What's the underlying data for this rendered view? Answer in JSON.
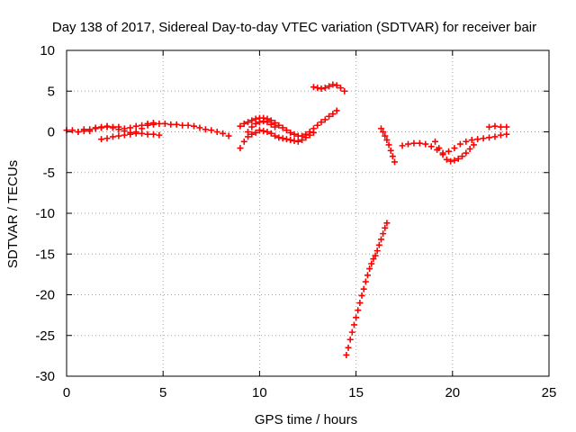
{
  "chart_data": {
    "type": "scatter",
    "title": "Day 138 of 2017, Sidereal Day-to-day VTEC variation (SDTVAR) for receiver bair",
    "xlabel": "GPS time / hours",
    "ylabel": "SDTVAR / TECUs",
    "xlim": [
      0,
      25
    ],
    "ylim": [
      -30,
      10
    ],
    "xticks": [
      0,
      5,
      10,
      15,
      20,
      25
    ],
    "yticks": [
      -30,
      -25,
      -20,
      -15,
      -10,
      -5,
      0,
      5,
      10
    ],
    "grid": true,
    "grid_style": "dotted",
    "marker": "plus",
    "color": "#ff0000",
    "series": [
      {
        "points": [
          [
            0.0,
            0.2
          ],
          [
            0.3,
            0.2
          ],
          [
            0.6,
            0.0
          ],
          [
            0.9,
            0.3
          ],
          [
            1.2,
            0.1
          ],
          [
            1.5,
            0.4
          ],
          [
            1.8,
            0.5
          ],
          [
            2.1,
            0.6
          ],
          [
            2.4,
            0.5
          ],
          [
            2.7,
            0.6
          ],
          [
            3.0,
            0.4
          ],
          [
            3.3,
            0.5
          ],
          [
            3.6,
            0.7
          ],
          [
            3.9,
            0.8
          ],
          [
            4.2,
            1.0
          ],
          [
            4.5,
            1.1
          ],
          [
            4.8,
            1.0
          ],
          [
            5.1,
            1.0
          ],
          [
            5.4,
            0.9
          ],
          [
            5.7,
            0.9
          ],
          [
            6.0,
            0.8
          ],
          [
            6.3,
            0.8
          ],
          [
            6.6,
            0.7
          ],
          [
            6.9,
            0.5
          ],
          [
            7.2,
            0.3
          ],
          [
            7.5,
            0.2
          ],
          [
            7.8,
            0.0
          ],
          [
            8.1,
            -0.2
          ],
          [
            8.4,
            -0.5
          ],
          [
            1.8,
            -0.9
          ],
          [
            2.1,
            -0.8
          ],
          [
            2.4,
            -0.6
          ],
          [
            2.7,
            -0.5
          ],
          [
            3.0,
            -0.4
          ],
          [
            3.3,
            -0.3
          ],
          [
            3.6,
            -0.2
          ],
          [
            3.9,
            -0.2
          ],
          [
            4.2,
            -0.3
          ],
          [
            4.5,
            -0.3
          ],
          [
            4.8,
            -0.4
          ],
          [
            0.6,
            0.0
          ],
          [
            0.9,
            0.1
          ],
          [
            1.2,
            0.3
          ],
          [
            1.5,
            0.5
          ],
          [
            1.8,
            0.6
          ],
          [
            2.1,
            0.7
          ],
          [
            2.4,
            0.6
          ],
          [
            2.7,
            0.3
          ],
          [
            3.0,
            0.1
          ],
          [
            3.3,
            -0.1
          ],
          [
            3.6,
            0.0
          ],
          [
            3.9,
            0.4
          ],
          [
            4.2,
            0.8
          ],
          [
            4.5,
            0.9
          ],
          [
            9.0,
            -2.0
          ],
          [
            9.2,
            -1.2
          ],
          [
            9.4,
            -0.6
          ],
          [
            9.6,
            -0.3
          ],
          [
            9.8,
            -0.1
          ],
          [
            10.0,
            0.2
          ],
          [
            10.2,
            0.1
          ],
          [
            10.4,
            0.0
          ],
          [
            10.6,
            -0.2
          ],
          [
            10.8,
            -0.5
          ],
          [
            11.0,
            -0.7
          ],
          [
            11.2,
            -0.8
          ],
          [
            11.4,
            -0.9
          ],
          [
            11.6,
            -1.0
          ],
          [
            11.8,
            -1.1
          ],
          [
            12.0,
            -1.2
          ],
          [
            12.2,
            -1.0
          ],
          [
            12.4,
            -0.7
          ],
          [
            12.6,
            -0.4
          ],
          [
            12.8,
            -0.1
          ],
          [
            9.0,
            0.7
          ],
          [
            9.2,
            1.0
          ],
          [
            9.4,
            1.2
          ],
          [
            9.6,
            1.4
          ],
          [
            9.8,
            1.6
          ],
          [
            10.0,
            1.7
          ],
          [
            10.2,
            1.7
          ],
          [
            10.4,
            1.6
          ],
          [
            10.6,
            1.4
          ],
          [
            10.8,
            1.1
          ],
          [
            11.0,
            0.8
          ],
          [
            11.2,
            0.5
          ],
          [
            11.4,
            0.2
          ],
          [
            11.6,
            -0.1
          ],
          [
            11.8,
            -0.3
          ],
          [
            12.0,
            -0.5
          ],
          [
            12.2,
            -0.5
          ],
          [
            12.4,
            -0.3
          ],
          [
            12.6,
            0.0
          ],
          [
            12.8,
            0.4
          ],
          [
            13.0,
            0.8
          ],
          [
            13.2,
            1.2
          ],
          [
            13.4,
            1.5
          ],
          [
            13.6,
            1.9
          ],
          [
            13.8,
            2.2
          ],
          [
            14.0,
            2.6
          ],
          [
            9.4,
            0.0
          ],
          [
            9.6,
            0.6
          ],
          [
            9.8,
            1.0
          ],
          [
            10.0,
            1.2
          ],
          [
            10.2,
            1.3
          ],
          [
            10.4,
            1.2
          ],
          [
            10.6,
            0.9
          ],
          [
            10.8,
            0.6
          ],
          [
            12.8,
            5.5
          ],
          [
            13.0,
            5.4
          ],
          [
            13.2,
            5.3
          ],
          [
            13.4,
            5.4
          ],
          [
            13.6,
            5.6
          ],
          [
            13.8,
            5.8
          ],
          [
            14.0,
            5.7
          ],
          [
            14.2,
            5.4
          ],
          [
            14.4,
            5.0
          ],
          [
            14.5,
            -27.4
          ],
          [
            14.6,
            -26.5
          ],
          [
            14.7,
            -25.5
          ],
          [
            14.8,
            -24.6
          ],
          [
            14.9,
            -23.7
          ],
          [
            15.0,
            -22.8
          ],
          [
            15.1,
            -21.9
          ],
          [
            15.2,
            -21.0
          ],
          [
            15.3,
            -20.1
          ],
          [
            15.4,
            -19.3
          ],
          [
            15.5,
            -18.4
          ],
          [
            15.6,
            -17.6
          ],
          [
            15.7,
            -16.8
          ],
          [
            15.8,
            -16.2
          ],
          [
            15.9,
            -15.6
          ],
          [
            16.0,
            -15.2
          ],
          [
            16.1,
            -14.6
          ],
          [
            16.2,
            -13.9
          ],
          [
            16.3,
            -13.2
          ],
          [
            16.4,
            -12.5
          ],
          [
            16.5,
            -11.8
          ],
          [
            16.6,
            -11.2
          ],
          [
            16.3,
            0.4
          ],
          [
            16.4,
            0.0
          ],
          [
            16.5,
            -0.5
          ],
          [
            16.6,
            -1.0
          ],
          [
            16.7,
            -1.6
          ],
          [
            16.8,
            -2.3
          ],
          [
            16.9,
            -3.0
          ],
          [
            17.0,
            -3.7
          ],
          [
            17.4,
            -1.7
          ],
          [
            17.7,
            -1.5
          ],
          [
            18.0,
            -1.4
          ],
          [
            18.3,
            -1.4
          ],
          [
            18.6,
            -1.5
          ],
          [
            18.9,
            -1.8
          ],
          [
            19.2,
            -2.2
          ],
          [
            19.5,
            -2.6
          ],
          [
            19.8,
            -2.4
          ],
          [
            20.1,
            -2.0
          ],
          [
            20.4,
            -1.5
          ],
          [
            20.7,
            -1.2
          ],
          [
            21.0,
            -1.0
          ],
          [
            21.3,
            -0.9
          ],
          [
            21.6,
            -0.8
          ],
          [
            21.9,
            -0.7
          ],
          [
            22.2,
            -0.6
          ],
          [
            22.5,
            -0.4
          ],
          [
            22.8,
            -0.3
          ],
          [
            19.1,
            -1.2
          ],
          [
            19.3,
            -2.0
          ],
          [
            19.5,
            -2.8
          ],
          [
            19.7,
            -3.4
          ],
          [
            19.9,
            -3.6
          ],
          [
            20.1,
            -3.5
          ],
          [
            20.3,
            -3.3
          ],
          [
            20.5,
            -3.0
          ],
          [
            20.7,
            -2.6
          ],
          [
            20.9,
            -2.1
          ],
          [
            21.1,
            -1.6
          ],
          [
            21.9,
            0.6
          ],
          [
            22.2,
            0.7
          ],
          [
            22.5,
            0.6
          ],
          [
            22.8,
            0.6
          ]
        ]
      }
    ]
  }
}
